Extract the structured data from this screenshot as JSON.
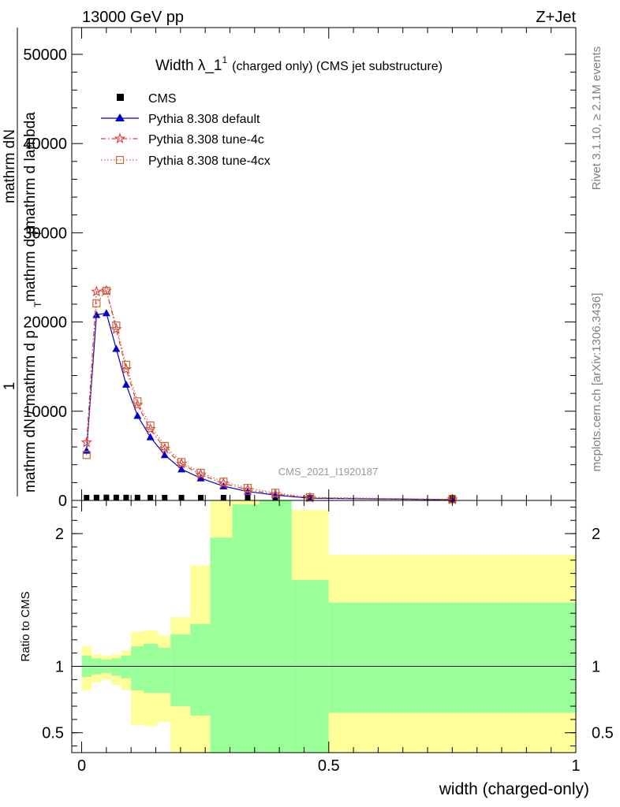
{
  "header": {
    "left": "13000 GeV pp",
    "right": "Z+Jet",
    "side_right_top": "Rivet 3.1.10, ≥ 2.1M events",
    "side_right_bottom": "mcplots.cern.ch [arXiv:1306.3436]",
    "watermark": "CMS_2021_I1920187"
  },
  "colors": {
    "cms": "#000000",
    "default": "#0000cc",
    "tune4c": "#e03a3a",
    "tune4cx": "#c8693a",
    "band_inner": "#99ff99",
    "band_outer": "#ffff99"
  },
  "chart_data": [
    {
      "type": "line",
      "title": "Width λ_1¹ (charged only) (CMS jet substructure)",
      "title_main": "Width λ_1",
      "title_sup": "1",
      "title_rest": "(charged only) (CMS jet substructure)",
      "ylabel_parts": [
        "1",
        "mathrm dN / mathrm d p",
        "T",
        "mathrm d p",
        "T",
        "mathrm dN",
        "mathrm d lambda"
      ],
      "xlim": [
        -0.02,
        1.0
      ],
      "ylim": [
        0,
        53000
      ],
      "y_ticks": [
        0,
        10000,
        20000,
        30000,
        40000,
        50000
      ],
      "y_tick_labels": [
        "0",
        "10000",
        "20000",
        "30000",
        "40000",
        "50000"
      ],
      "legend_position": "top-left",
      "legend": [
        "CMS",
        "Pythia 8.308 default",
        "Pythia 8.308 tune-4c",
        "Pythia 8.308 tune-4cx"
      ],
      "x": [
        0.01,
        0.03,
        0.05,
        0.07,
        0.09,
        0.113,
        0.139,
        0.168,
        0.202,
        0.241,
        0.287,
        0.336,
        0.392,
        0.462,
        0.75
      ],
      "series": [
        {
          "name": "CMS",
          "marker": "square",
          "values": [
            5,
            20,
            30,
            25,
            20,
            15,
            12,
            10,
            8,
            6,
            5,
            4,
            3,
            2,
            1
          ]
        },
        {
          "name": "Pythia 8.308 default",
          "marker": "triangle",
          "values": [
            5600,
            20800,
            21000,
            17000,
            13000,
            9500,
            7100,
            5100,
            3500,
            2500,
            1600,
            1000,
            600,
            250,
            80
          ]
        },
        {
          "name": "Pythia 8.308 tune-4c",
          "marker": "star",
          "values": [
            6500,
            23400,
            23500,
            19200,
            14700,
            10700,
            8000,
            5800,
            4100,
            2900,
            1900,
            1200,
            700,
            300,
            100
          ]
        },
        {
          "name": "Pythia 8.308 tune-4cx",
          "marker": "open-square",
          "values": [
            5100,
            22100,
            23500,
            19600,
            15200,
            11100,
            8400,
            6100,
            4300,
            3100,
            2100,
            1400,
            850,
            350,
            120
          ]
        }
      ]
    },
    {
      "type": "area",
      "ylabel": "Ratio to CMS",
      "xlabel": "width (charged-only)",
      "xlim": [
        -0.02,
        1.0
      ],
      "ylim": [
        0.35,
        2.25
      ],
      "x_ticks": [
        0,
        0.5,
        1
      ],
      "x_tick_labels": [
        "0",
        "0.5",
        "1"
      ],
      "y_ticks": [
        0.5,
        1,
        2
      ],
      "y_tick_labels": [
        "0.5",
        "1",
        "2"
      ],
      "reference_line": 1,
      "bins": [
        {
          "lo": 0.0,
          "hi": 0.02,
          "inner": [
            0.92,
            1.08
          ],
          "outer": [
            0.82,
            1.15
          ]
        },
        {
          "lo": 0.02,
          "hi": 0.04,
          "inner": [
            0.94,
            1.06
          ],
          "outer": [
            0.88,
            1.09
          ]
        },
        {
          "lo": 0.04,
          "hi": 0.06,
          "inner": [
            0.95,
            1.05
          ],
          "outer": [
            0.9,
            1.08
          ]
        },
        {
          "lo": 0.06,
          "hi": 0.08,
          "inner": [
            0.93,
            1.06
          ],
          "outer": [
            0.86,
            1.09
          ]
        },
        {
          "lo": 0.08,
          "hi": 0.1,
          "inner": [
            0.91,
            1.08
          ],
          "outer": [
            0.82,
            1.12
          ]
        },
        {
          "lo": 0.1,
          "hi": 0.125,
          "inner": [
            0.82,
            1.15
          ],
          "outer": [
            0.56,
            1.26
          ]
        },
        {
          "lo": 0.125,
          "hi": 0.155,
          "inner": [
            0.8,
            1.17
          ],
          "outer": [
            0.55,
            1.27
          ]
        },
        {
          "lo": 0.155,
          "hi": 0.18,
          "inner": [
            0.8,
            1.14
          ],
          "outer": [
            0.58,
            1.23
          ]
        },
        {
          "lo": 0.18,
          "hi": 0.22,
          "inner": [
            0.7,
            1.24
          ],
          "outer": [
            0.35,
            1.37
          ]
        },
        {
          "lo": 0.22,
          "hi": 0.26,
          "inner": [
            0.63,
            1.32
          ],
          "outer": [
            0.35,
            1.76
          ]
        },
        {
          "lo": 0.26,
          "hi": 0.305,
          "inner": [
            0.35,
            1.97
          ],
          "outer": [
            0.35,
            2.25
          ]
        },
        {
          "lo": 0.305,
          "hi": 0.36,
          "inner": [
            0.35,
            2.22
          ],
          "outer": [
            0.35,
            2.25
          ]
        },
        {
          "lo": 0.36,
          "hi": 0.425,
          "inner": [
            0.35,
            2.25
          ],
          "outer": [
            0.35,
            2.25
          ]
        },
        {
          "lo": 0.425,
          "hi": 0.5,
          "inner": [
            0.35,
            1.65
          ],
          "outer": [
            0.35,
            2.18
          ]
        },
        {
          "lo": 0.5,
          "hi": 1.0,
          "inner": [
            0.65,
            1.48
          ],
          "outer": [
            0.35,
            1.84
          ]
        }
      ]
    }
  ]
}
